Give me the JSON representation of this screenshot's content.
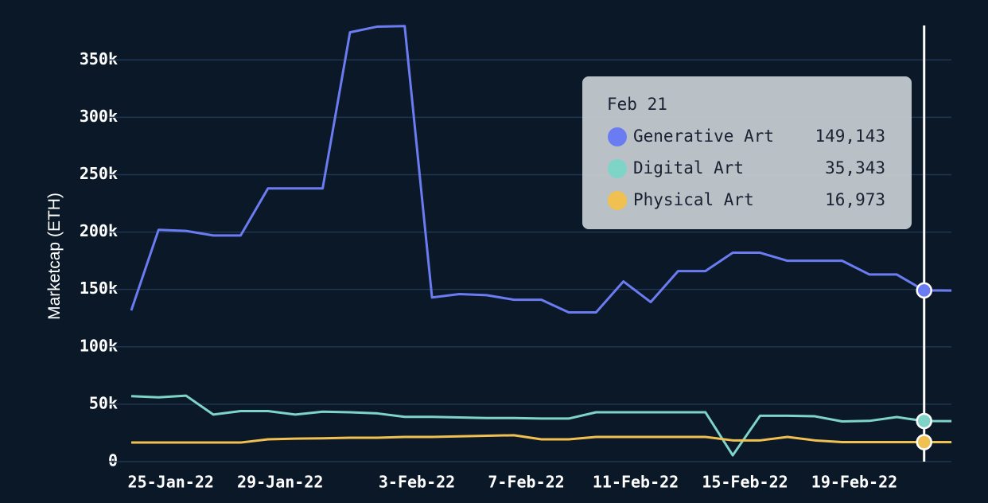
{
  "chart_data": {
    "type": "line",
    "y_label": "Marketcap (ETH)",
    "categories": [
      null,
      null,
      "25-Jan-22",
      null,
      null,
      null,
      "29-Jan-22",
      null,
      null,
      null,
      null,
      "3-Feb-22",
      null,
      null,
      null,
      "7-Feb-22",
      null,
      null,
      null,
      "11-Feb-22",
      null,
      null,
      null,
      "15-Feb-22",
      null,
      null,
      null,
      "19-Feb-22",
      null,
      null,
      null
    ],
    "series": [
      {
        "name": "Generative Art",
        "color": "#6b7cf2",
        "values": [
          131700,
          202000,
          201000,
          197000,
          197000,
          238000,
          238000,
          238000,
          374000,
          379000,
          379500,
          143000,
          146000,
          145000,
          141000,
          141000,
          130000,
          130000,
          157000,
          139000,
          166000,
          166000,
          182000,
          182000,
          175000,
          175000,
          175000,
          163000,
          163000,
          149143,
          149000
        ]
      },
      {
        "name": "Digital Art",
        "color": "#7fd4c8",
        "values": [
          57000,
          56000,
          57500,
          41000,
          44000,
          44000,
          41000,
          43500,
          43000,
          42000,
          39000,
          39000,
          38500,
          38000,
          38000,
          37500,
          37500,
          43000,
          43000,
          43000,
          43000,
          43000,
          5500,
          40000,
          40000,
          39500,
          35000,
          35500,
          38800,
          35343,
          35300
        ]
      },
      {
        "name": "Physical Art",
        "color": "#f0c050",
        "values": [
          16600,
          16600,
          16600,
          16600,
          16600,
          19400,
          20000,
          20300,
          20800,
          20800,
          21500,
          21500,
          22000,
          22500,
          23000,
          19400,
          19400,
          21500,
          21500,
          21500,
          21500,
          21500,
          18500,
          18500,
          21500,
          18500,
          17000,
          17000,
          17000,
          16973,
          17000
        ]
      }
    ],
    "ylim": [
      0,
      380000
    ],
    "yticks": [
      0,
      {
        "value": 50000,
        "label": "50k"
      },
      {
        "value": 100000,
        "label": "100k"
      },
      {
        "value": 150000,
        "label": "150k"
      },
      {
        "value": 200000,
        "label": "200k"
      },
      {
        "value": 250000,
        "label": "250k"
      },
      {
        "value": 300000,
        "label": "300k"
      },
      {
        "value": 350000,
        "label": "350k"
      }
    ],
    "grid": true,
    "tooltip": {
      "title": "Feb 21",
      "value_labels": [
        "149,143",
        "35,343",
        "16,973"
      ]
    }
  }
}
